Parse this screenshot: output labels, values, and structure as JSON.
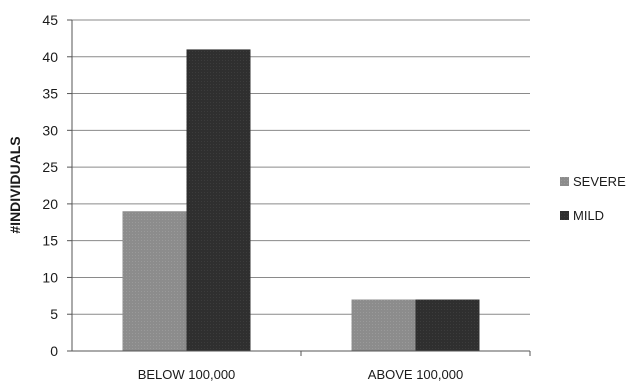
{
  "chart_data": {
    "type": "bar",
    "title": "",
    "xlabel": "",
    "ylabel": "#INDIVIDUALS",
    "categories": [
      "BELOW 100,000",
      "ABOVE 100,000"
    ],
    "series": [
      {
        "name": "SEVERE",
        "values": [
          19,
          7
        ],
        "color": "#8c8c8c"
      },
      {
        "name": "MILD",
        "values": [
          41,
          7
        ],
        "color": "#2f2f2f"
      }
    ],
    "ylim": [
      0,
      45
    ],
    "yticks": [
      0,
      5,
      10,
      15,
      20,
      25,
      30,
      35,
      40,
      45
    ],
    "grid": true,
    "legend_position": "right"
  }
}
